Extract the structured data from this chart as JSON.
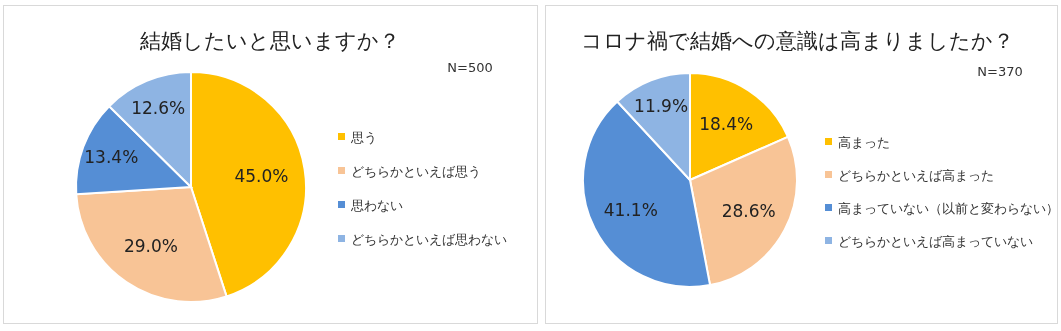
{
  "chart_data": [
    {
      "type": "pie",
      "title": "結婚したいと思いますか？",
      "annotations": [
        "N=500"
      ],
      "categories": [
        "思う",
        "どちらかといえば思う",
        "思わない",
        "どちらかといえば思わない"
      ],
      "values": [
        45.0,
        29.0,
        13.4,
        12.6
      ],
      "value_labels": [
        "45.0%",
        "29.0%",
        "13.4%",
        "12.6%"
      ],
      "colors": [
        "#ffc000",
        "#f8c496",
        "#558ed5",
        "#8eb4e3"
      ],
      "legend": "right"
    },
    {
      "type": "pie",
      "title": "コロナ禍で結婚への意識は高まりましたか？",
      "annotations": [
        "N=370"
      ],
      "categories": [
        "高まった",
        "どちらかといえば高まった",
        "高まっていない（以前と変わらない）",
        "どちらかといえば高まっていない"
      ],
      "values": [
        18.4,
        28.6,
        41.1,
        11.9
      ],
      "value_labels": [
        "18.4%",
        "28.6%",
        "41.1%",
        "11.9%"
      ],
      "colors": [
        "#ffc000",
        "#f8c496",
        "#558ed5",
        "#8eb4e3"
      ],
      "legend": "right"
    }
  ]
}
